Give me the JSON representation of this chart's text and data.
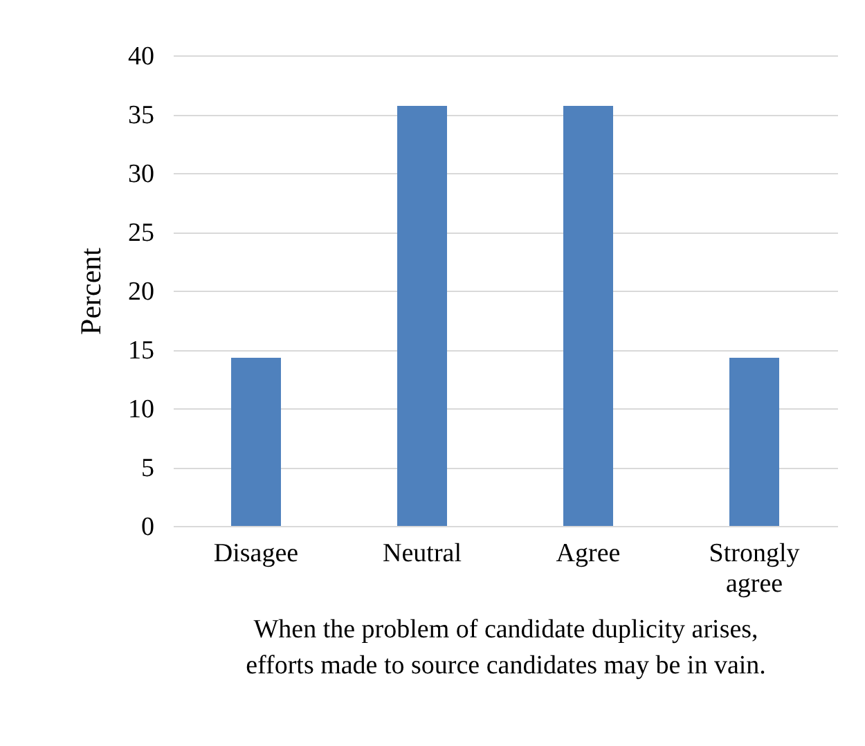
{
  "chart_data": {
    "type": "bar",
    "xlabel": "When the problem of candidate duplicity arises, efforts made to source candidates may be in vain.",
    "ylabel": "Percent",
    "categories": [
      "Disagee",
      "Neutral",
      "Agree",
      "Strongly agree"
    ],
    "values": [
      14.3,
      35.7,
      35.7,
      14.3
    ],
    "color": "#4f81bd",
    "ylim": [
      0,
      40
    ],
    "yticks": [
      0,
      5,
      10,
      15,
      20,
      25,
      30,
      35,
      40
    ],
    "grid": "y"
  }
}
